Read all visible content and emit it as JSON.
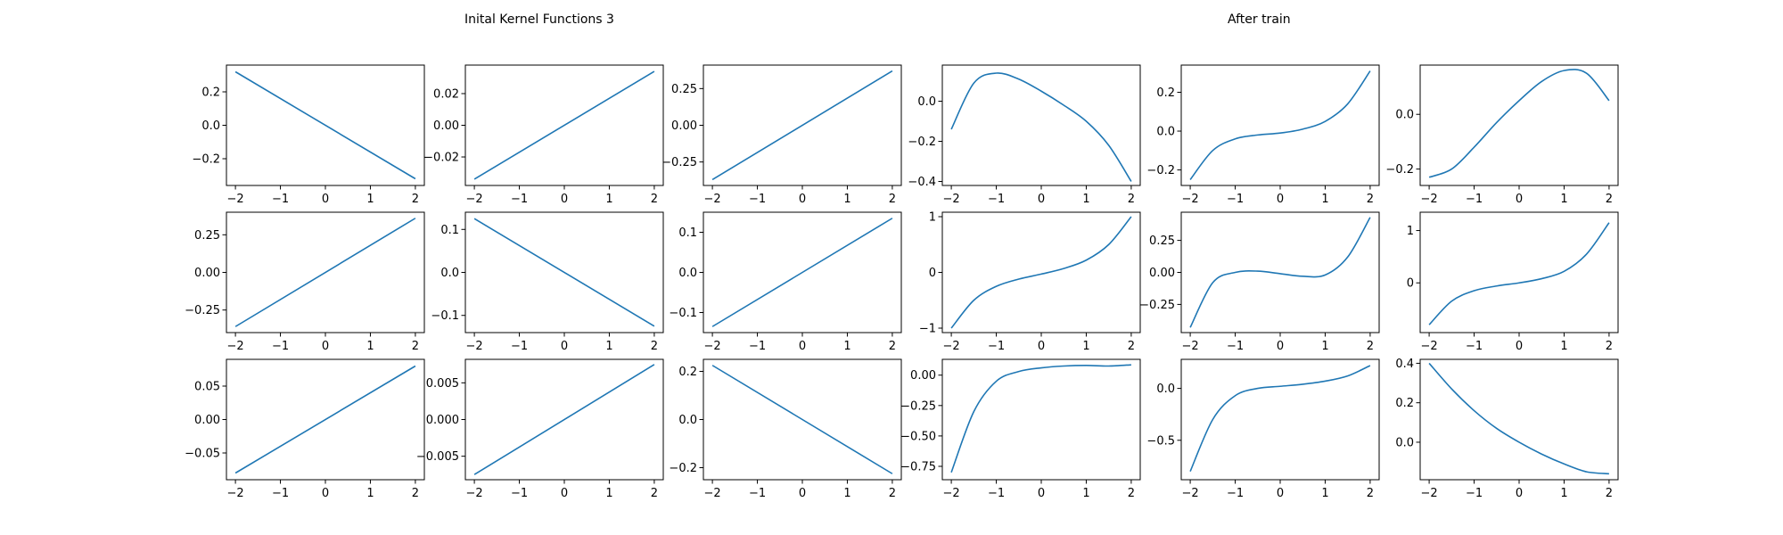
{
  "figure": {
    "left_title": "Inital Kernel Functions 3",
    "right_title": "After train"
  },
  "chart_data": [
    {
      "type": "line",
      "grid": false,
      "xlim": [
        -2.2,
        2.2
      ],
      "ylim": [
        -0.36,
        0.36
      ],
      "xticks": [
        -2,
        -1,
        0,
        1,
        2
      ],
      "yticks": [
        0.2,
        0.0,
        -0.2
      ],
      "ytick_labels": [
        "0.2",
        "0.0",
        "−0.2"
      ],
      "x": [
        -2,
        2
      ],
      "y": [
        0.32,
        -0.32
      ],
      "color": "#1f77b4"
    },
    {
      "type": "line",
      "grid": false,
      "xlim": [
        -2.2,
        2.2
      ],
      "ylim": [
        -0.038,
        0.038
      ],
      "xticks": [
        -2,
        -1,
        0,
        1,
        2
      ],
      "yticks": [
        0.02,
        0.0,
        -0.02
      ],
      "ytick_labels": [
        "0.02",
        "0.00",
        "−0.02"
      ],
      "x": [
        -2,
        2
      ],
      "y": [
        -0.034,
        0.034
      ],
      "color": "#1f77b4"
    },
    {
      "type": "line",
      "grid": false,
      "xlim": [
        -2.2,
        2.2
      ],
      "ylim": [
        -0.41,
        0.41
      ],
      "xticks": [
        -2,
        -1,
        0,
        1,
        2
      ],
      "yticks": [
        0.25,
        0.0,
        -0.25
      ],
      "ytick_labels": [
        "0.25",
        "0.00",
        "−0.25"
      ],
      "x": [
        -2,
        2
      ],
      "y": [
        -0.37,
        0.37
      ],
      "color": "#1f77b4"
    },
    {
      "type": "line",
      "grid": false,
      "xlim": [
        -2.2,
        2.2
      ],
      "ylim": [
        -0.42,
        0.18
      ],
      "xticks": [
        -2,
        -1,
        0,
        1,
        2
      ],
      "yticks": [
        0.0,
        -0.2,
        -0.4
      ],
      "ytick_labels": [
        "0.0",
        "−0.2",
        "−0.4"
      ],
      "x": [
        -2,
        -1.5,
        -1,
        -0.5,
        0,
        0.5,
        1,
        1.5,
        2
      ],
      "y": [
        -0.14,
        0.09,
        0.14,
        0.11,
        0.05,
        -0.02,
        -0.1,
        -0.22,
        -0.4
      ],
      "color": "#1f77b4"
    },
    {
      "type": "line",
      "grid": false,
      "xlim": [
        -2.2,
        2.2
      ],
      "ylim": [
        -0.28,
        0.34
      ],
      "xticks": [
        -2,
        -1,
        0,
        1,
        2
      ],
      "yticks": [
        0.2,
        0.0,
        -0.2
      ],
      "ytick_labels": [
        "0.2",
        "0.0",
        "−0.2"
      ],
      "x": [
        -2,
        -1.5,
        -1,
        -0.5,
        0,
        0.5,
        1,
        1.5,
        2
      ],
      "y": [
        -0.25,
        -0.1,
        -0.04,
        -0.02,
        -0.01,
        0.01,
        0.05,
        0.14,
        0.31
      ],
      "color": "#1f77b4"
    },
    {
      "type": "line",
      "grid": false,
      "xlim": [
        -2.2,
        2.2
      ],
      "ylim": [
        -0.26,
        0.18
      ],
      "xticks": [
        -2,
        -1,
        0,
        1,
        2
      ],
      "yticks": [
        0.0,
        -0.2
      ],
      "ytick_labels": [
        "0.0",
        "−0.2"
      ],
      "x": [
        -2,
        -1.5,
        -1,
        -0.5,
        0,
        0.5,
        1,
        1.5,
        2
      ],
      "y": [
        -0.23,
        -0.2,
        -0.12,
        -0.03,
        0.05,
        0.12,
        0.16,
        0.15,
        0.05
      ],
      "color": "#1f77b4"
    },
    {
      "type": "line",
      "grid": false,
      "xlim": [
        -2.2,
        2.2
      ],
      "ylim": [
        -0.4,
        0.4
      ],
      "xticks": [
        -2,
        -1,
        0,
        1,
        2
      ],
      "yticks": [
        0.25,
        0.0,
        -0.25
      ],
      "ytick_labels": [
        "0.25",
        "0.00",
        "−0.25"
      ],
      "x": [
        -2,
        2
      ],
      "y": [
        -0.36,
        0.36
      ],
      "color": "#1f77b4"
    },
    {
      "type": "line",
      "grid": false,
      "xlim": [
        -2.2,
        2.2
      ],
      "ylim": [
        -0.14,
        0.14
      ],
      "xticks": [
        -2,
        -1,
        0,
        1,
        2
      ],
      "yticks": [
        0.1,
        0.0,
        -0.1
      ],
      "ytick_labels": [
        "0.1",
        "0.0",
        "−0.1"
      ],
      "x": [
        -2,
        2
      ],
      "y": [
        0.125,
        -0.125
      ],
      "color": "#1f77b4"
    },
    {
      "type": "line",
      "grid": false,
      "xlim": [
        -2.2,
        2.2
      ],
      "ylim": [
        -0.15,
        0.15
      ],
      "xticks": [
        -2,
        -1,
        0,
        1,
        2
      ],
      "yticks": [
        0.1,
        0.0,
        -0.1
      ],
      "ytick_labels": [
        "0.1",
        "0.0",
        "−0.1"
      ],
      "x": [
        -2,
        2
      ],
      "y": [
        -0.135,
        0.135
      ],
      "color": "#1f77b4"
    },
    {
      "type": "line",
      "grid": false,
      "xlim": [
        -2.2,
        2.2
      ],
      "ylim": [
        -1.08,
        1.08
      ],
      "xticks": [
        -2,
        -1,
        0,
        1,
        2
      ],
      "yticks": [
        1,
        0,
        -1
      ],
      "ytick_labels": [
        "1",
        "0",
        "−1"
      ],
      "x": [
        -2,
        -1.5,
        -1,
        -0.5,
        0,
        0.5,
        1,
        1.5,
        2
      ],
      "y": [
        -1.0,
        -0.5,
        -0.25,
        -0.12,
        -0.03,
        0.07,
        0.22,
        0.5,
        1.0
      ],
      "color": "#1f77b4"
    },
    {
      "type": "line",
      "grid": false,
      "xlim": [
        -2.2,
        2.2
      ],
      "ylim": [
        -0.47,
        0.47
      ],
      "xticks": [
        -2,
        -1,
        0,
        1,
        2
      ],
      "yticks": [
        0.25,
        0.0,
        -0.25
      ],
      "ytick_labels": [
        "0.25",
        "0.00",
        "−0.25"
      ],
      "x": [
        -2,
        -1.5,
        -1,
        -0.5,
        0,
        0.5,
        1,
        1.5,
        2
      ],
      "y": [
        -0.43,
        -0.08,
        0.0,
        0.01,
        -0.01,
        -0.03,
        -0.02,
        0.12,
        0.43
      ],
      "color": "#1f77b4"
    },
    {
      "type": "line",
      "grid": false,
      "xlim": [
        -2.2,
        2.2
      ],
      "ylim": [
        -0.95,
        1.35
      ],
      "xticks": [
        -2,
        -1,
        0,
        1,
        2
      ],
      "yticks": [
        1,
        0
      ],
      "ytick_labels": [
        "1",
        "0"
      ],
      "x": [
        -2,
        -1.5,
        -1,
        -0.5,
        0,
        0.5,
        1,
        1.5,
        2
      ],
      "y": [
        -0.8,
        -0.35,
        -0.15,
        -0.06,
        0.0,
        0.08,
        0.22,
        0.55,
        1.15
      ],
      "color": "#1f77b4"
    },
    {
      "type": "line",
      "grid": false,
      "xlim": [
        -2.2,
        2.2
      ],
      "ylim": [
        -0.09,
        0.09
      ],
      "xticks": [
        -2,
        -1,
        0,
        1,
        2
      ],
      "yticks": [
        0.05,
        0.0,
        -0.05
      ],
      "ytick_labels": [
        "0.05",
        "0.00",
        "−0.05"
      ],
      "x": [
        -2,
        2
      ],
      "y": [
        -0.08,
        0.08
      ],
      "color": "#1f77b4"
    },
    {
      "type": "line",
      "grid": false,
      "xlim": [
        -2.2,
        2.2
      ],
      "ylim": [
        -0.0082,
        0.0082
      ],
      "xticks": [
        -2,
        -1,
        0,
        1,
        2
      ],
      "yticks": [
        0.005,
        0.0,
        -0.005
      ],
      "ytick_labels": [
        "0.005",
        "0.000",
        "−0.005"
      ],
      "x": [
        -2,
        2
      ],
      "y": [
        -0.0075,
        0.0075
      ],
      "color": "#1f77b4"
    },
    {
      "type": "line",
      "grid": false,
      "xlim": [
        -2.2,
        2.2
      ],
      "ylim": [
        -0.25,
        0.25
      ],
      "xticks": [
        -2,
        -1,
        0,
        1,
        2
      ],
      "yticks": [
        0.2,
        0.0,
        -0.2
      ],
      "ytick_labels": [
        "0.2",
        "0.0",
        "−0.2"
      ],
      "x": [
        -2,
        2
      ],
      "y": [
        0.225,
        -0.225
      ],
      "color": "#1f77b4"
    },
    {
      "type": "line",
      "grid": false,
      "xlim": [
        -2.2,
        2.2
      ],
      "ylim": [
        -0.86,
        0.13
      ],
      "xticks": [
        -2,
        -1,
        0,
        1,
        2
      ],
      "yticks": [
        0.0,
        -0.25,
        -0.5,
        -0.75
      ],
      "ytick_labels": [
        "0.00",
        "−0.25",
        "−0.50",
        "−0.75"
      ],
      "x": [
        -2,
        -1.5,
        -1,
        -0.5,
        0,
        0.5,
        1,
        1.5,
        2
      ],
      "y": [
        -0.8,
        -0.3,
        -0.05,
        0.03,
        0.06,
        0.075,
        0.08,
        0.075,
        0.085
      ],
      "color": "#1f77b4"
    },
    {
      "type": "line",
      "grid": false,
      "xlim": [
        -2.2,
        2.2
      ],
      "ylim": [
        -0.88,
        0.28
      ],
      "xticks": [
        -2,
        -1,
        0,
        1,
        2
      ],
      "yticks": [
        0.0,
        -0.5
      ],
      "ytick_labels": [
        "0.0",
        "−0.5"
      ],
      "x": [
        -2,
        -1.5,
        -1,
        -0.5,
        0,
        0.5,
        1,
        1.5,
        2
      ],
      "y": [
        -0.8,
        -0.3,
        -0.07,
        0.0,
        0.02,
        0.04,
        0.07,
        0.12,
        0.22
      ],
      "color": "#1f77b4"
    },
    {
      "type": "line",
      "grid": false,
      "xlim": [
        -2.2,
        2.2
      ],
      "ylim": [
        -0.19,
        0.42
      ],
      "xticks": [
        -2,
        -1,
        0,
        1,
        2
      ],
      "yticks": [
        0.4,
        0.2,
        0.0
      ],
      "ytick_labels": [
        "0.4",
        "0.2",
        "0.0"
      ],
      "x": [
        -2,
        -1.5,
        -1,
        -0.5,
        0,
        0.5,
        1,
        1.5,
        2
      ],
      "y": [
        0.4,
        0.27,
        0.16,
        0.07,
        0.0,
        -0.06,
        -0.11,
        -0.15,
        -0.16
      ],
      "color": "#1f77b4"
    }
  ]
}
